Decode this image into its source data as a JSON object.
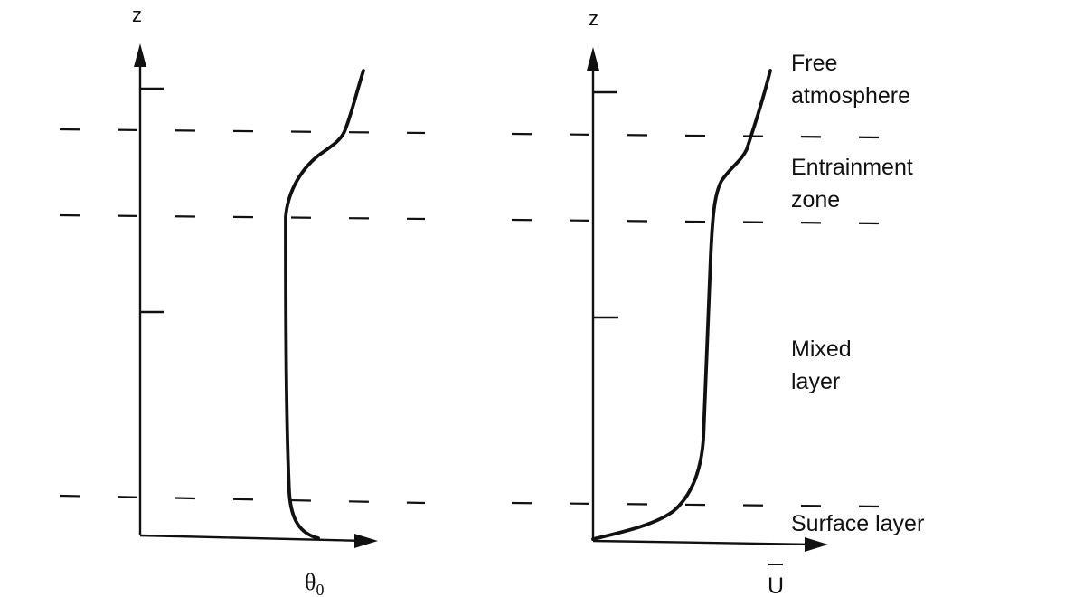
{
  "left_panel": {
    "y_axis_label": "z",
    "x_axis_label": "θ",
    "x_axis_subscript": "0"
  },
  "right_panel": {
    "y_axis_label": "z",
    "x_axis_label": "U",
    "x_axis_overbar": true
  },
  "layers": [
    {
      "line1": "Free",
      "line2": "atmosphere"
    },
    {
      "line1": "Entrainment",
      "line2": "zone"
    },
    {
      "line1": "Mixed",
      "line2": "layer"
    },
    {
      "line1": "Surface layer",
      "line2": ""
    }
  ],
  "colors": {
    "ink": "#111111",
    "background": "#ffffff"
  }
}
